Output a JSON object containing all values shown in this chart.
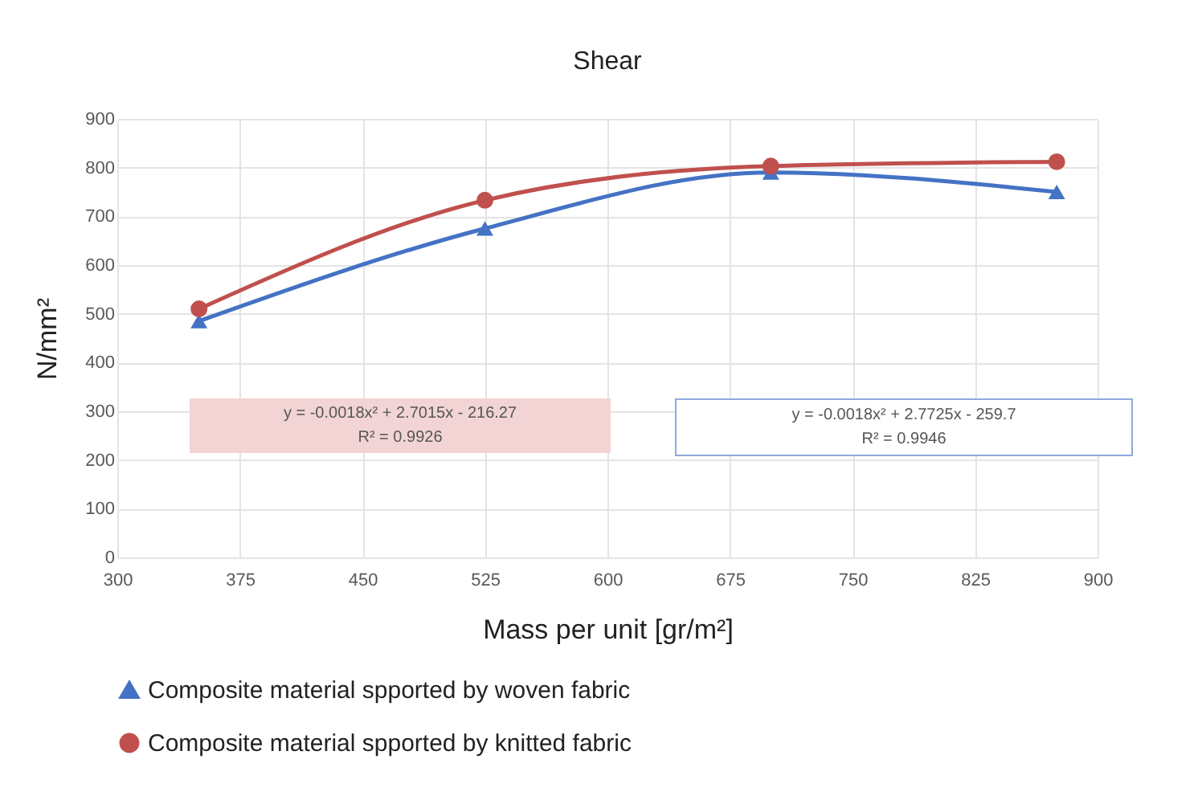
{
  "chart_data": {
    "type": "line",
    "title": "Shear",
    "xlabel": "Mass per unit [gr/m²]",
    "ylabel": "N/mm²",
    "x": [
      350,
      525,
      700,
      875
    ],
    "series": [
      {
        "name": "Composite material spported by woven fabric",
        "color": "#4472c4",
        "marker": "triangle",
        "values": [
          485,
          675,
          790,
          750
        ]
      },
      {
        "name": "Composite material spported by knitted fabric",
        "color": "#c0504d",
        "marker": "circle",
        "values": [
          510,
          733,
          803,
          812
        ]
      }
    ],
    "xlim": [
      300,
      900
    ],
    "xticks": [
      300,
      375,
      450,
      525,
      600,
      675,
      750,
      825,
      900
    ],
    "ylim": [
      0,
      900
    ],
    "yticks": [
      0,
      100,
      200,
      300,
      400,
      500,
      600,
      700,
      800,
      900
    ],
    "grid": true,
    "legend": "bottom",
    "line_style": "solid",
    "annotations": [
      "y = -0.0018x² + 2.7015x - 216.27\nR² = 0.9926",
      "y = -0.0018x² + 2.7725x - 259.7\nR² = 0.9946"
    ]
  }
}
